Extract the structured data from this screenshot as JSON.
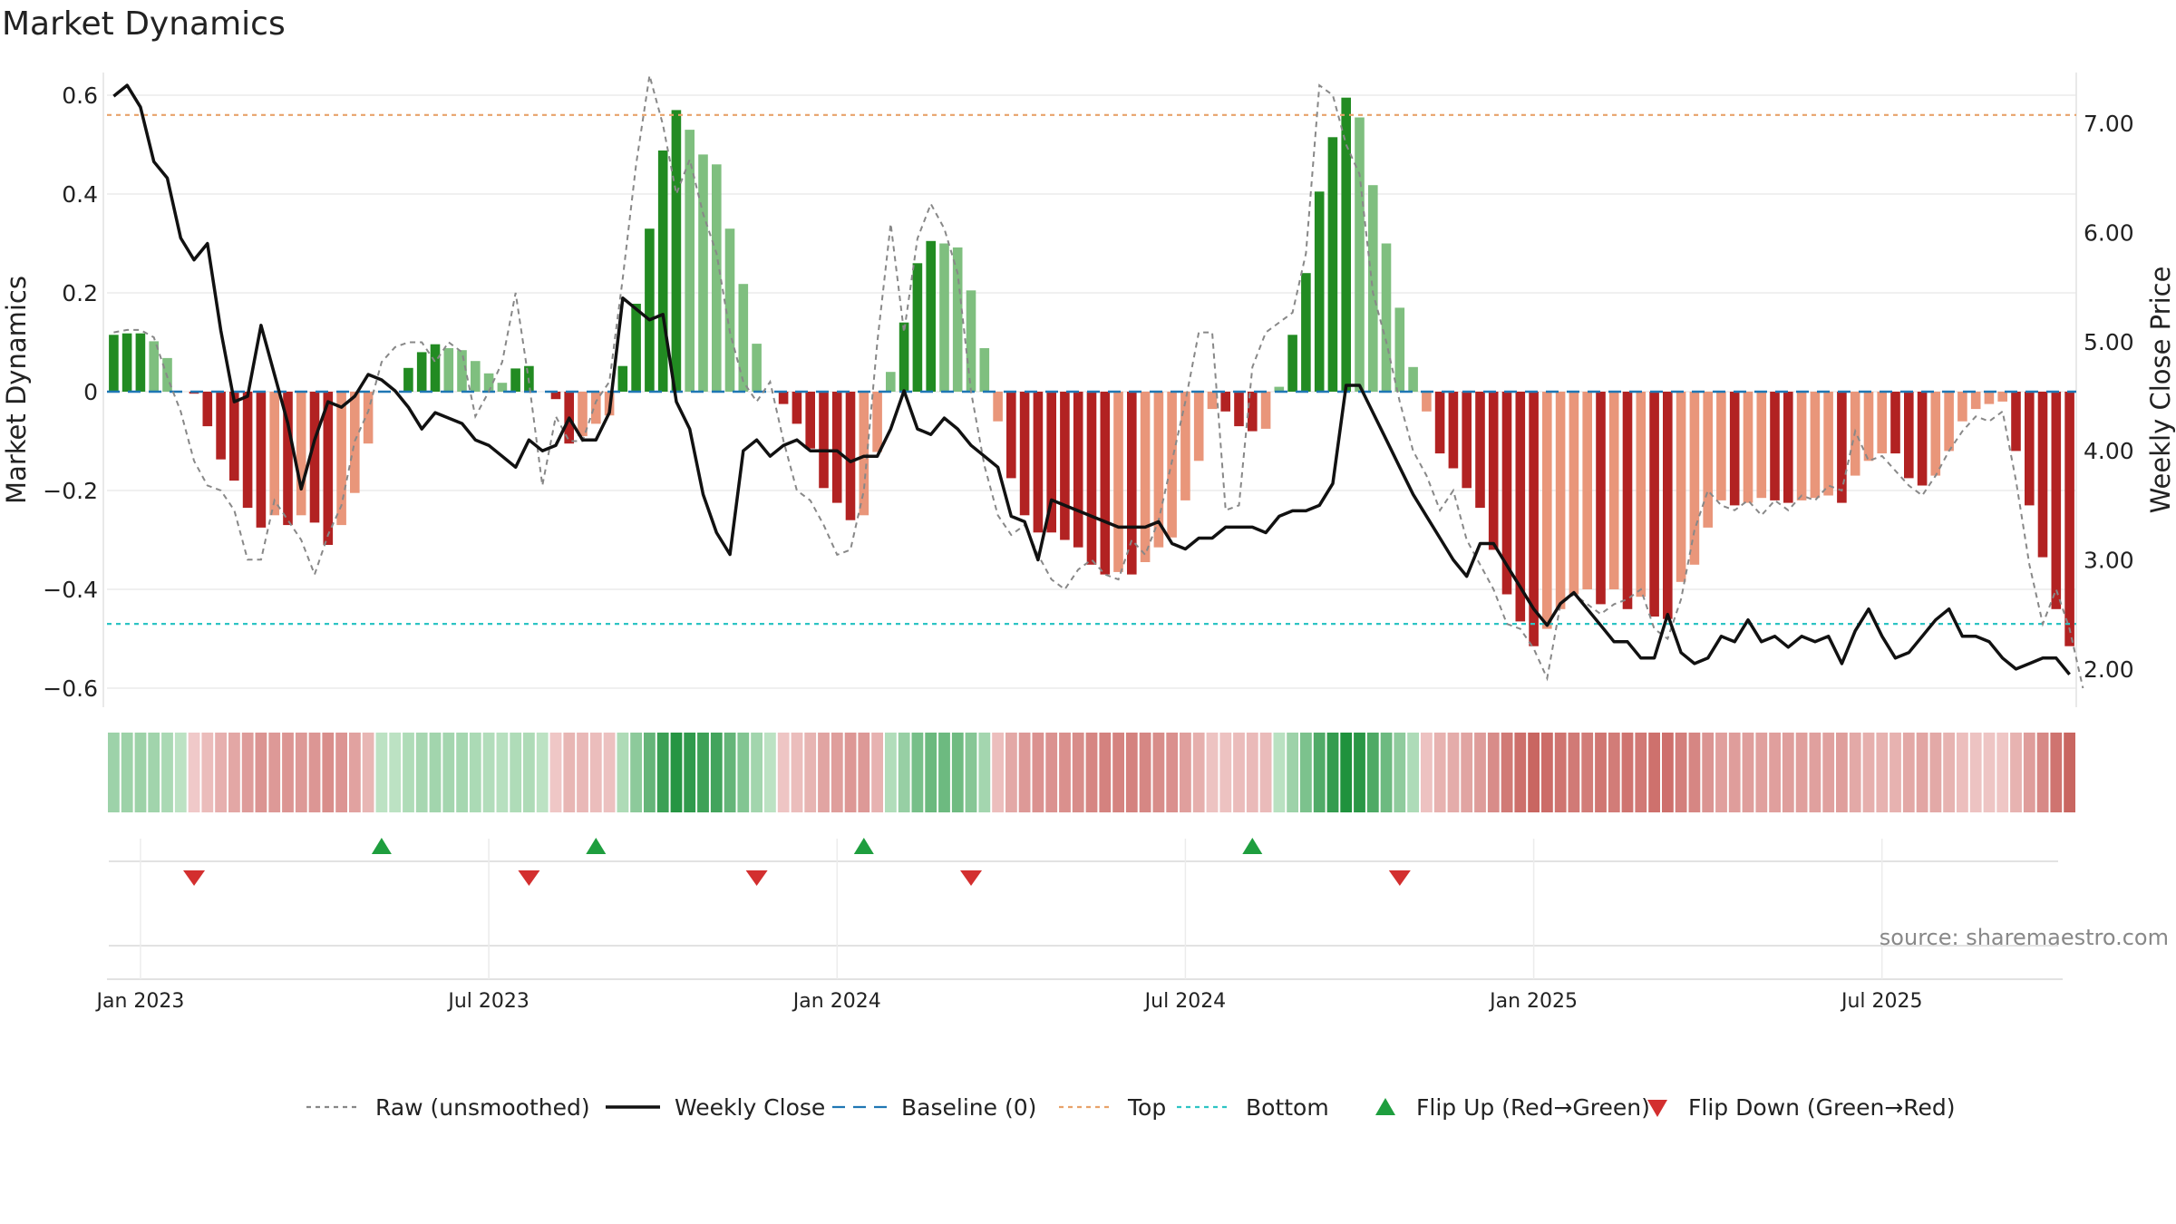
{
  "title": "Market Dynamics",
  "source": "source: sharemaestro.com",
  "chart_data": {
    "type": "bar+line",
    "y_left_label": "Market Dynamics",
    "y_right_label": "Weekly Close Price",
    "y_left_range": [
      -0.65,
      0.65
    ],
    "y_left_ticks": [
      "0.6",
      "0.4",
      "0.2",
      "0",
      "−0.2",
      "−0.4",
      "−0.6"
    ],
    "y_left_tick_values": [
      0.6,
      0.4,
      0.2,
      0,
      -0.2,
      -0.4,
      -0.6
    ],
    "y_right_range": [
      1.65,
      7.55
    ],
    "y_right_ticks": [
      "7.00",
      "6.00",
      "5.00",
      "4.00",
      "3.00",
      "2.00"
    ],
    "y_right_tick_values": [
      7,
      6,
      5,
      4,
      3,
      2
    ],
    "top_level": 0.56,
    "bottom_level": -0.47,
    "x_ticks": [
      {
        "label": "Jan 2023",
        "week": 2
      },
      {
        "label": "Jul 2023",
        "week": 28
      },
      {
        "label": "Jan 2024",
        "week": 54
      },
      {
        "label": "Jul 2024",
        "week": 80
      },
      {
        "label": "Jan 2025",
        "week": 106
      },
      {
        "label": "Jul 2025",
        "week": 132
      }
    ],
    "bars": [
      0.115,
      0.118,
      0.118,
      0.102,
      0.068,
      0.0,
      -0.004,
      -0.07,
      -0.137,
      -0.18,
      -0.235,
      -0.275,
      -0.25,
      -0.27,
      -0.25,
      -0.265,
      -0.31,
      -0.27,
      -0.205,
      -0.105,
      0.0,
      0.0,
      0.048,
      0.08,
      0.096,
      0.088,
      0.084,
      0.062,
      0.037,
      0.018,
      0.047,
      0.052,
      0.0,
      -0.015,
      -0.105,
      -0.09,
      -0.065,
      -0.048,
      0.052,
      0.178,
      0.33,
      0.488,
      0.57,
      0.53,
      0.48,
      0.46,
      0.33,
      0.218,
      0.097,
      0.0,
      -0.025,
      -0.065,
      -0.115,
      -0.195,
      -0.225,
      -0.26,
      -0.25,
      -0.122,
      0.04,
      0.14,
      0.26,
      0.305,
      0.3,
      0.292,
      0.205,
      0.088,
      -0.06,
      -0.175,
      -0.25,
      -0.285,
      -0.285,
      -0.3,
      -0.315,
      -0.35,
      -0.37,
      -0.365,
      -0.37,
      -0.345,
      -0.315,
      -0.295,
      -0.22,
      -0.14,
      -0.035,
      -0.04,
      -0.07,
      -0.08,
      -0.075,
      0.01,
      0.115,
      0.24,
      0.405,
      0.515,
      0.595,
      0.555,
      0.418,
      0.3,
      0.17,
      0.05,
      -0.04,
      -0.125,
      -0.155,
      -0.195,
      -0.235,
      -0.32,
      -0.41,
      -0.465,
      -0.515,
      -0.48,
      -0.44,
      -0.41,
      -0.4,
      -0.43,
      -0.4,
      -0.44,
      -0.415,
      -0.455,
      -0.46,
      -0.385,
      -0.35,
      -0.275,
      -0.22,
      -0.23,
      -0.225,
      -0.215,
      -0.22,
      -0.225,
      -0.22,
      -0.215,
      -0.21,
      -0.225,
      -0.17,
      -0.14,
      -0.125,
      -0.125,
      -0.175,
      -0.19,
      -0.17,
      -0.12,
      -0.06,
      -0.035,
      -0.025,
      -0.02,
      -0.12,
      -0.23,
      -0.335,
      -0.44,
      -0.515
    ],
    "raw": [
      0.12,
      0.125,
      0.125,
      0.11,
      0.03,
      -0.04,
      -0.14,
      -0.19,
      -0.2,
      -0.24,
      -0.34,
      -0.34,
      -0.22,
      -0.26,
      -0.3,
      -0.37,
      -0.29,
      -0.23,
      -0.1,
      -0.04,
      0.06,
      0.09,
      0.1,
      0.1,
      0.06,
      0.1,
      0.08,
      -0.05,
      0.0,
      0.06,
      0.2,
      0.02,
      -0.19,
      -0.05,
      -0.1,
      -0.1,
      -0.02,
      0.02,
      0.23,
      0.46,
      0.64,
      0.54,
      0.4,
      0.47,
      0.36,
      0.28,
      0.12,
      0.02,
      -0.02,
      0.02,
      -0.1,
      -0.2,
      -0.22,
      -0.27,
      -0.33,
      -0.32,
      -0.2,
      0.1,
      0.34,
      0.12,
      0.31,
      0.38,
      0.33,
      0.24,
      0.0,
      -0.15,
      -0.25,
      -0.29,
      -0.27,
      -0.33,
      -0.38,
      -0.4,
      -0.36,
      -0.34,
      -0.37,
      -0.38,
      -0.3,
      -0.33,
      -0.26,
      -0.14,
      -0.02,
      0.12,
      0.12,
      -0.24,
      -0.23,
      0.05,
      0.12,
      0.14,
      0.16,
      0.28,
      0.62,
      0.6,
      0.5,
      0.44,
      0.2,
      0.1,
      -0.02,
      -0.12,
      -0.17,
      -0.24,
      -0.2,
      -0.3,
      -0.35,
      -0.4,
      -0.47,
      -0.48,
      -0.52,
      -0.58,
      -0.43,
      -0.41,
      -0.43,
      -0.45,
      -0.43,
      -0.42,
      -0.4,
      -0.48,
      -0.5,
      -0.42,
      -0.28,
      -0.2,
      -0.23,
      -0.24,
      -0.22,
      -0.25,
      -0.22,
      -0.24,
      -0.21,
      -0.22,
      -0.19,
      -0.2,
      -0.08,
      -0.14,
      -0.13,
      -0.16,
      -0.19,
      -0.21,
      -0.17,
      -0.12,
      -0.08,
      -0.05,
      -0.06,
      -0.04,
      -0.18,
      -0.35,
      -0.47,
      -0.4,
      -0.48,
      -0.6
    ],
    "close": [
      7.25,
      7.35,
      7.15,
      6.65,
      6.5,
      5.95,
      5.75,
      5.9,
      5.1,
      4.45,
      4.5,
      5.15,
      4.7,
      4.25,
      3.65,
      4.1,
      4.45,
      4.4,
      4.5,
      4.7,
      4.65,
      4.55,
      4.4,
      4.2,
      4.35,
      4.3,
      4.25,
      4.1,
      4.05,
      3.95,
      3.85,
      4.1,
      4.0,
      4.05,
      4.3,
      4.1,
      4.1,
      4.35,
      5.4,
      5.3,
      5.2,
      5.25,
      4.45,
      4.2,
      3.6,
      3.25,
      3.05,
      4.0,
      4.1,
      3.95,
      4.05,
      4.1,
      4.0,
      4.0,
      4.0,
      3.9,
      3.95,
      3.95,
      4.2,
      4.55,
      4.2,
      4.15,
      4.3,
      4.2,
      4.05,
      3.95,
      3.85,
      3.4,
      3.35,
      3.0,
      3.55,
      3.5,
      3.45,
      3.4,
      3.35,
      3.3,
      3.3,
      3.3,
      3.35,
      3.15,
      3.1,
      3.2,
      3.2,
      3.3,
      3.3,
      3.3,
      3.25,
      3.4,
      3.45,
      3.45,
      3.5,
      3.7,
      4.6,
      4.6,
      4.35,
      4.1,
      3.85,
      3.6,
      3.4,
      3.2,
      3.0,
      2.85,
      3.15,
      3.15,
      2.95,
      2.75,
      2.55,
      2.4,
      2.6,
      2.7,
      2.55,
      2.4,
      2.25,
      2.25,
      2.1,
      2.1,
      2.5,
      2.15,
      2.05,
      2.1,
      2.3,
      2.25,
      2.45,
      2.25,
      2.3,
      2.2,
      2.3,
      2.25,
      2.3,
      2.05,
      2.35,
      2.55,
      2.3,
      2.1,
      2.15,
      2.3,
      2.45,
      2.55,
      2.3,
      2.3,
      2.25,
      2.1,
      2.0,
      2.05,
      2.1,
      2.1,
      1.95
    ],
    "flips_up": [
      20,
      36,
      56,
      85
    ],
    "flips_down": [
      6,
      31,
      48,
      64,
      96
    ],
    "legend": [
      {
        "label": "Raw (unsmoothed)",
        "kind": "dotted",
        "color": "#888888"
      },
      {
        "label": "Weekly Close",
        "kind": "solid",
        "color": "#111111"
      },
      {
        "label": "Baseline (0)",
        "kind": "dashed",
        "color": "#1f77b4"
      },
      {
        "label": "Top",
        "kind": "dotted",
        "color": "#e8a26a"
      },
      {
        "label": "Bottom",
        "kind": "dotted",
        "color": "#2ec4c4"
      },
      {
        "label": "Flip Up (Red→Green)",
        "kind": "tri-up",
        "color": "#1e9e3e"
      },
      {
        "label": "Flip Down (Green→Red)",
        "kind": "tri-down",
        "color": "#d32f2f"
      }
    ],
    "colors": {
      "green_strong": "#228b22",
      "green_light": "#7fbf7f",
      "red_strong": "#b22222",
      "red_light": "#e9967a",
      "close_line": "#111111",
      "raw_line": "#888888",
      "top_line": "#e8a26a",
      "bottom_line": "#2ec4c4",
      "baseline": "#1f77b4"
    }
  }
}
